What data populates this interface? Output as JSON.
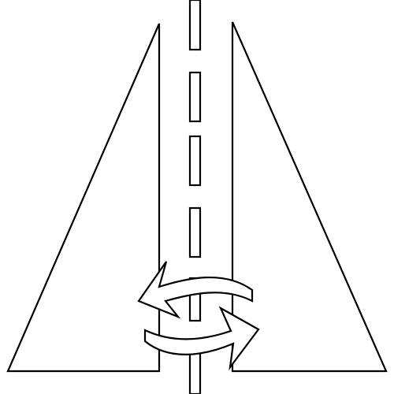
{
  "figure": {
    "background_color": "#ffffff",
    "stroke_color": "#000000",
    "fill_color": "#ffffff"
  },
  "road": {
    "center_line_style": "dashed",
    "center_dash_count": 6
  },
  "symbol": {
    "icon": "two-way-arrows-icon",
    "arrow_count": 2,
    "arrow_directions": [
      "left",
      "right"
    ]
  }
}
